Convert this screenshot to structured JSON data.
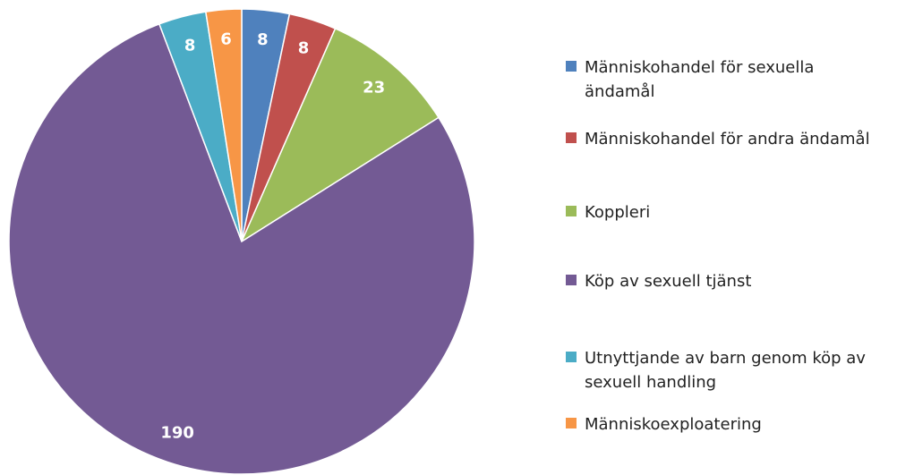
{
  "chart_data": {
    "type": "pie",
    "categories": [
      "Människohandel för sexuella ändamål",
      "Människohandel för andra ändamål",
      "Koppleri",
      "Köp av sexuell tjänst",
      "Utnyttjande av barn genom köp av sexuell handling",
      "Människoexploatering"
    ],
    "values": [
      8,
      8,
      23,
      190,
      8,
      6
    ],
    "colors": [
      "#4f81bd",
      "#c0504d",
      "#9bbb59",
      "#735a94",
      "#4bacc6",
      "#f79646"
    ],
    "legend": "right"
  }
}
